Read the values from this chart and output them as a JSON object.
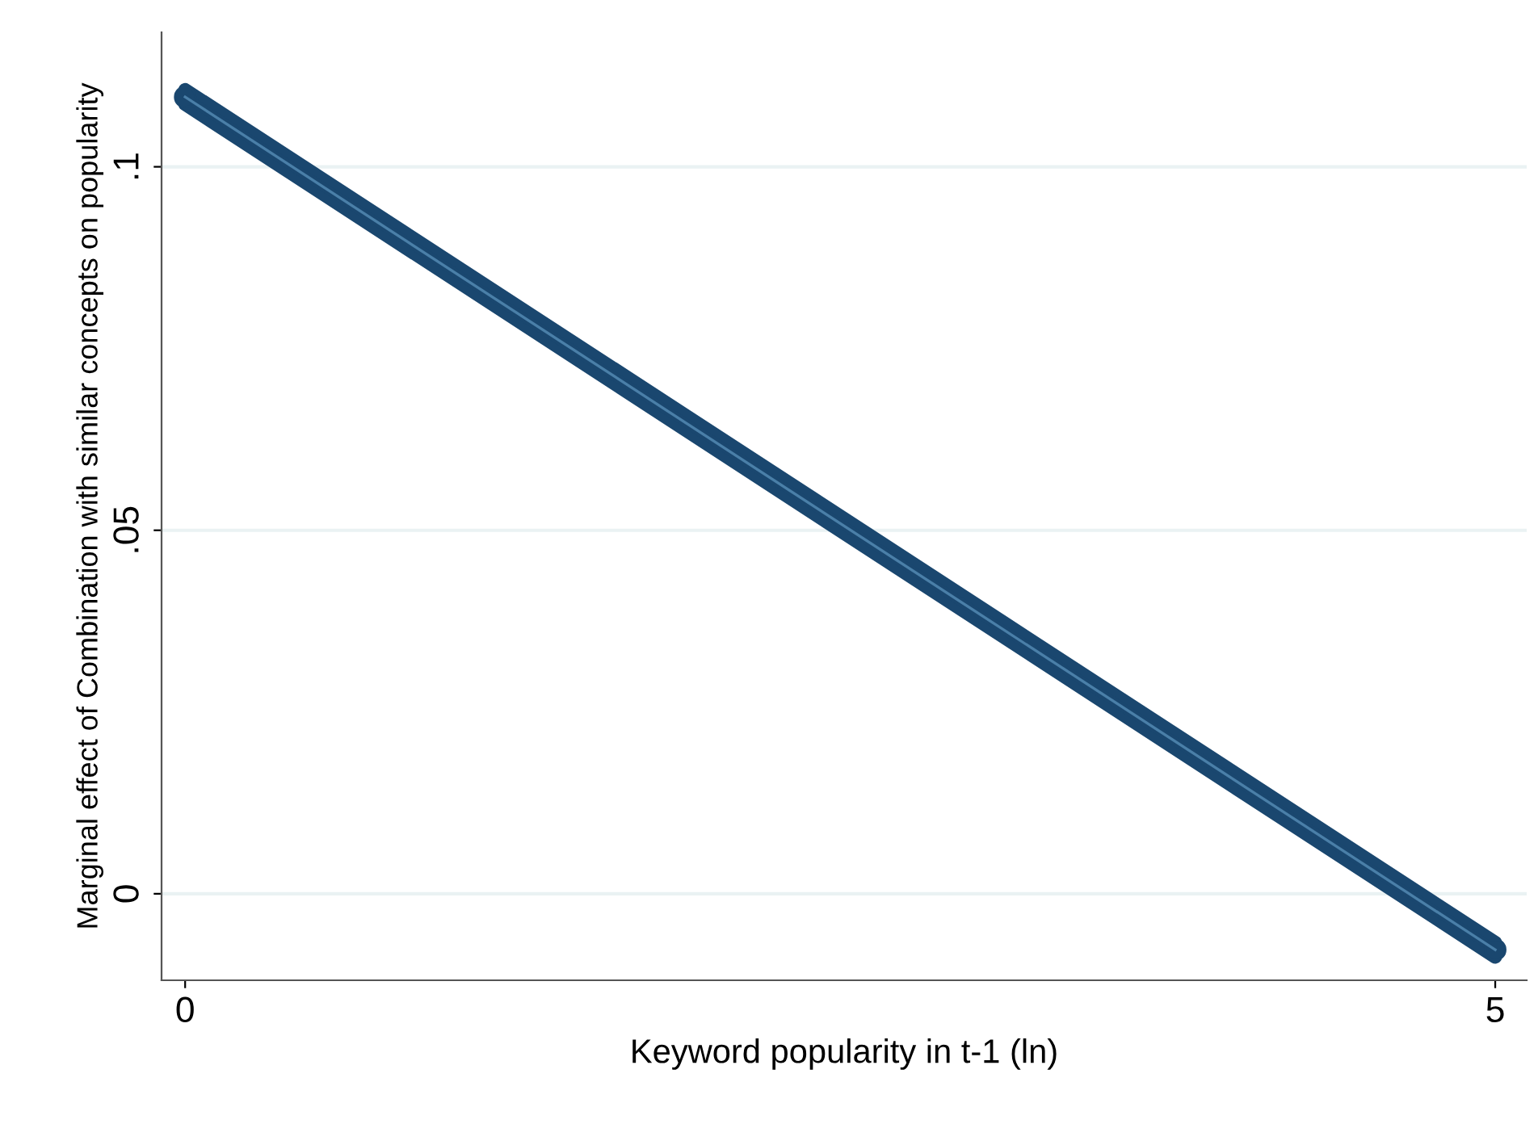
{
  "chart_data": {
    "type": "line",
    "xlabel": "Keyword popularity in t-1 (ln)",
    "ylabel": "Marginal effect of Combination with similar concepts on popularity",
    "x": [
      0,
      5
    ],
    "series": [
      {
        "color": "#1a476f",
        "values": [
          0.1096,
          -0.0077
        ],
        "lower": [
          0.1086,
          -0.0087
        ],
        "upper": [
          0.1106,
          -0.0067
        ]
      }
    ],
    "xlim": [
      -0.09,
      5.12
    ],
    "xticks": [
      0,
      5
    ],
    "ylim": [
      -0.0119,
      0.1185
    ],
    "yticks": [
      {
        "value": 0,
        "label": "0"
      },
      {
        "value": 0.05,
        "label": ".05"
      },
      {
        "value": 0.1,
        "label": ".1"
      }
    ],
    "grid": "y",
    "marker": "circle",
    "line_style": "solid"
  }
}
